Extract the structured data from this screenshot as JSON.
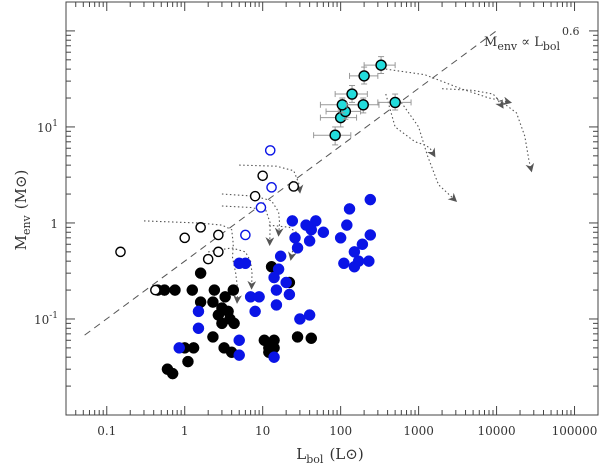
{
  "chart_data": {
    "type": "scatter",
    "title": "",
    "xlabel": "L",
    "xlabel_sub": "bol",
    "xlabel_unit": "(L⊙)",
    "ylabel": "M",
    "ylabel_sub": "env",
    "ylabel_unit": "(M⊙)",
    "xscale": "log",
    "yscale": "log",
    "xlim": [
      0.03,
      200000
    ],
    "ylim": [
      0.01,
      200
    ],
    "x_ticks": [
      {
        "value": 0.1,
        "label": "0.1"
      },
      {
        "value": 1,
        "label": "1"
      },
      {
        "value": 10,
        "label": "10"
      },
      {
        "value": 100,
        "label": "100"
      },
      {
        "value": 1000,
        "label": "1000"
      },
      {
        "value": 10000,
        "label": "10000"
      },
      {
        "value": 100000,
        "label": "100000"
      }
    ],
    "y_ticks": [
      {
        "value": 0.1,
        "label": "10",
        "exp": "-1"
      },
      {
        "value": 1,
        "label": "1",
        "exp": ""
      },
      {
        "value": 10,
        "label": "10",
        "exp": "1"
      }
    ],
    "annotation": {
      "text": "M",
      "sub1": "env",
      "mid": " ∝ L",
      "sub2": "bol",
      "sup": "0.6"
    },
    "relation": {
      "label": "M_env ∝ L_bol^0.6",
      "coef": 0.4,
      "exponent": 0.6,
      "x_range": [
        0.052,
        900
      ]
    },
    "colors": {
      "black": "#000000",
      "blue": "#0a14e6",
      "cyan": "#22dcdc",
      "axis": "#444444",
      "dashed": "#555555",
      "dotted": "#555555",
      "errorbar": "#999999"
    },
    "series": [
      {
        "name": "Black filled",
        "marker": "filled",
        "color": "#000000",
        "points": [
          [
            0.45,
            0.2
          ],
          [
            0.75,
            0.2
          ],
          [
            1.25,
            0.2
          ],
          [
            1.6,
            0.3
          ],
          [
            2.4,
            0.2
          ],
          [
            3.3,
            0.17
          ],
          [
            4.2,
            0.2
          ],
          [
            13,
            0.35
          ],
          [
            22,
            0.24
          ],
          [
            0.55,
            0.2
          ],
          [
            1.6,
            0.15
          ],
          [
            2.3,
            0.15
          ],
          [
            2.7,
            0.11
          ],
          [
            3.0,
            0.13
          ],
          [
            3.6,
            0.12
          ],
          [
            3.0,
            0.09
          ],
          [
            3.8,
            0.1
          ],
          [
            4.3,
            0.09
          ],
          [
            2.3,
            0.065
          ],
          [
            3.2,
            0.05
          ],
          [
            4.0,
            0.045
          ],
          [
            1.0,
            0.05
          ],
          [
            1.3,
            0.05
          ],
          [
            0.6,
            0.03
          ],
          [
            0.7,
            0.027
          ],
          [
            1.1,
            0.036
          ],
          [
            10.5,
            0.06
          ],
          [
            12,
            0.05
          ],
          [
            12,
            0.045
          ],
          [
            14,
            0.05
          ],
          [
            14,
            0.06
          ],
          [
            28,
            0.065
          ],
          [
            42,
            0.063
          ]
        ]
      },
      {
        "name": "Blue filled",
        "marker": "filled",
        "color": "#0a14e6",
        "points": [
          [
            5,
            0.38
          ],
          [
            6,
            0.38
          ],
          [
            7,
            0.17
          ],
          [
            8,
            0.12
          ],
          [
            9,
            0.17
          ],
          [
            14,
            0.27
          ],
          [
            16,
            0.33
          ],
          [
            17,
            0.45
          ],
          [
            15,
            0.2
          ],
          [
            15,
            0.14
          ],
          [
            20,
            0.24
          ],
          [
            22,
            0.18
          ],
          [
            24,
            1.05
          ],
          [
            26,
            0.7
          ],
          [
            28,
            0.55
          ],
          [
            36,
            0.95
          ],
          [
            40,
            0.65
          ],
          [
            42,
            0.85
          ],
          [
            48,
            1.05
          ],
          [
            60,
            0.8
          ],
          [
            100,
            0.7
          ],
          [
            120,
            0.95
          ],
          [
            130,
            1.4
          ],
          [
            150,
            0.5
          ],
          [
            190,
            0.6
          ],
          [
            240,
            1.75
          ],
          [
            240,
            0.75
          ],
          [
            110,
            0.38
          ],
          [
            150,
            0.35
          ],
          [
            170,
            0.4
          ],
          [
            230,
            0.4
          ],
          [
            30,
            0.1
          ],
          [
            40,
            0.11
          ],
          [
            1.5,
            0.12
          ],
          [
            1.5,
            0.08
          ],
          [
            5,
            0.06
          ],
          [
            5,
            0.042
          ],
          [
            14,
            0.04
          ],
          [
            0.85,
            0.05
          ]
        ]
      },
      {
        "name": "Black open",
        "marker": "open",
        "color": "#000000",
        "points": [
          [
            0.15,
            0.5
          ],
          [
            0.42,
            0.2
          ],
          [
            1.0,
            0.7
          ],
          [
            1.6,
            0.9
          ],
          [
            2.0,
            0.42
          ],
          [
            2.7,
            0.5
          ],
          [
            2.7,
            0.75
          ],
          [
            8,
            1.9
          ],
          [
            10,
            3.1
          ],
          [
            25,
            2.4
          ]
        ]
      },
      {
        "name": "Blue open",
        "marker": "open",
        "color": "#0a14e6",
        "points": [
          [
            6,
            0.75
          ],
          [
            9.5,
            1.45
          ],
          [
            13,
            2.35
          ],
          [
            12.5,
            5.7
          ]
        ]
      },
      {
        "name": "Cyan with error bars",
        "marker": "errorbar",
        "color": "#22dcdc",
        "points": [
          {
            "x": 85,
            "y": 8.2,
            "x_err": [
              45,
              135
            ],
            "y_err": [
              6.5,
              10
            ]
          },
          {
            "x": 100,
            "y": 12.5,
            "x_err": [
              55,
              160
            ],
            "y_err": [
              10,
              15
            ]
          },
          {
            "x": 115,
            "y": 14.5,
            "x_err": [
              65,
              180
            ],
            "y_err": [
              12,
              17
            ]
          },
          {
            "x": 105,
            "y": 17,
            "x_err": [
              55,
              170
            ],
            "y_err": [
              14,
              20
            ]
          },
          {
            "x": 140,
            "y": 22,
            "x_err": [
              85,
              220
            ],
            "y_err": [
              18,
              27
            ]
          },
          {
            "x": 195,
            "y": 17,
            "x_err": [
              120,
              310
            ],
            "y_err": [
              14,
              20
            ]
          },
          {
            "x": 200,
            "y": 34,
            "x_err": [
              130,
              300
            ],
            "y_err": [
              28,
              42
            ]
          },
          {
            "x": 330,
            "y": 44,
            "x_err": [
              200,
              500
            ],
            "y_err": [
              36,
              54
            ]
          },
          {
            "x": 500,
            "y": 18,
            "x_err": [
              300,
              800
            ],
            "y_err": [
              15,
              22
            ]
          }
        ]
      }
    ],
    "tracks": [
      [
        [
          0.3,
          1.05
        ],
        [
          1.5,
          1.0
        ],
        [
          3,
          0.95
        ],
        [
          4,
          0.85
        ],
        [
          4.2,
          0.6
        ],
        [
          4.1,
          0.44
        ],
        [
          4.5,
          0.3
        ],
        [
          4.8,
          0.2
        ],
        [
          4.7,
          0.15
        ]
      ],
      [
        [
          2,
          0.5
        ],
        [
          4,
          0.55
        ],
        [
          6,
          0.5
        ],
        [
          7,
          0.4
        ],
        [
          7.3,
          0.3
        ],
        [
          7.2,
          0.21
        ]
      ],
      [
        [
          5,
          4.0
        ],
        [
          15,
          3.9
        ],
        [
          25,
          3.5
        ],
        [
          29,
          2.6
        ],
        [
          30,
          2.1
        ]
      ],
      [
        [
          3,
          2.0
        ],
        [
          8,
          1.9
        ],
        [
          13,
          1.7
        ],
        [
          16,
          1.3
        ],
        [
          16.5,
          1.0
        ],
        [
          16,
          0.75
        ]
      ],
      [
        [
          3,
          1.5
        ],
        [
          7,
          1.45
        ],
        [
          11,
          1.35
        ],
        [
          12.5,
          1.0
        ],
        [
          12.3,
          0.6
        ]
      ],
      [
        [
          12,
          0.95
        ],
        [
          22,
          0.9
        ],
        [
          27,
          0.8
        ],
        [
          25,
          0.58
        ],
        [
          23,
          0.42
        ]
      ],
      [
        [
          380,
          40
        ],
        [
          1200,
          35
        ],
        [
          3500,
          25
        ],
        [
          8000,
          20
        ],
        [
          15000,
          18
        ]
      ],
      [
        [
          380,
          22
        ],
        [
          500,
          10
        ],
        [
          900,
          7
        ],
        [
          1200,
          6.5
        ],
        [
          1400,
          6
        ],
        [
          1600,
          5
        ]
      ],
      [
        [
          600,
          18
        ],
        [
          1000,
          10
        ],
        [
          1300,
          5
        ],
        [
          1800,
          2.5
        ],
        [
          3000,
          1.7
        ]
      ],
      [
        [
          2000,
          25
        ],
        [
          5000,
          24
        ],
        [
          9000,
          22
        ],
        [
          10000,
          20
        ],
        [
          12000,
          16
        ]
      ],
      [
        [
          10000,
          20
        ],
        [
          18000,
          14
        ],
        [
          23000,
          8
        ],
        [
          26000,
          4.5
        ],
        [
          28000,
          3.5
        ]
      ]
    ],
    "grid": false,
    "legend": "none"
  }
}
